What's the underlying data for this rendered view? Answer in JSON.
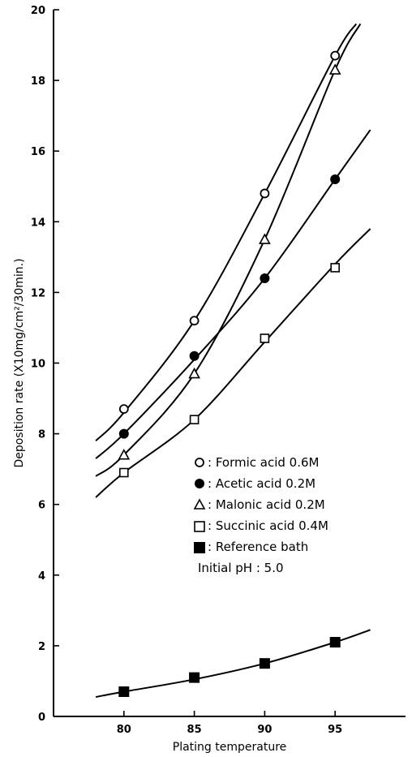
{
  "chart_data": {
    "type": "line",
    "xlabel": "Plating temperature",
    "ylabel": "Deposition rate (X10mg/cm²/30min.)",
    "xlim": [
      75,
      100
    ],
    "ylim": [
      0,
      20
    ],
    "xticks": [
      80,
      85,
      90,
      95
    ],
    "yticks": [
      0,
      2,
      4,
      6,
      8,
      10,
      12,
      14,
      16,
      18,
      20
    ],
    "grid": false,
    "legend_position": "inside-right",
    "series": [
      {
        "name": "Formic acid 0.6M",
        "marker": "circle-open",
        "x": [
          80,
          85,
          90,
          95
        ],
        "values": [
          8.7,
          11.2,
          14.8,
          18.7
        ],
        "curve_x": [
          78,
          80,
          85,
          90,
          95,
          96.5
        ],
        "curve_y": [
          7.8,
          8.6,
          11.2,
          14.8,
          18.7,
          19.6
        ]
      },
      {
        "name": "Acetic acid 0.2M",
        "marker": "circle-filled",
        "x": [
          80,
          85,
          90,
          95
        ],
        "values": [
          8.0,
          10.2,
          12.4,
          15.2
        ],
        "curve_x": [
          78,
          80,
          85,
          90,
          95,
          97.5
        ],
        "curve_y": [
          7.3,
          8.0,
          10.1,
          12.4,
          15.2,
          16.6
        ]
      },
      {
        "name": "Malonic acid 0.2M",
        "marker": "triangle-open",
        "x": [
          80,
          85,
          90,
          95
        ],
        "values": [
          7.4,
          9.7,
          13.5,
          18.3
        ],
        "curve_x": [
          78,
          80,
          85,
          90,
          95,
          96.8
        ],
        "curve_y": [
          6.8,
          7.4,
          9.7,
          13.5,
          18.3,
          19.6
        ]
      },
      {
        "name": "Succinic acid 0.4M",
        "marker": "square-open",
        "x": [
          80,
          85,
          90,
          95
        ],
        "values": [
          6.9,
          8.4,
          10.7,
          12.7
        ],
        "curve_x": [
          78,
          80,
          85,
          90,
          95,
          97.5
        ],
        "curve_y": [
          6.2,
          6.9,
          8.4,
          10.6,
          12.8,
          13.8
        ]
      },
      {
        "name": "Reference bath",
        "marker": "square-filled",
        "x": [
          80,
          85,
          90,
          95
        ],
        "values": [
          0.7,
          1.1,
          1.5,
          2.1
        ],
        "curve_x": [
          78,
          80,
          85,
          90,
          95,
          97.5
        ],
        "curve_y": [
          0.55,
          0.7,
          1.05,
          1.5,
          2.1,
          2.45
        ]
      }
    ],
    "legend": {
      "entries": [
        ": Formic acid 0.6M",
        ": Acetic acid 0.2M",
        ": Malonic acid 0.2M",
        ": Succinic acid 0.4M",
        ": Reference bath"
      ],
      "note": "Initial pH : 5.0"
    }
  }
}
